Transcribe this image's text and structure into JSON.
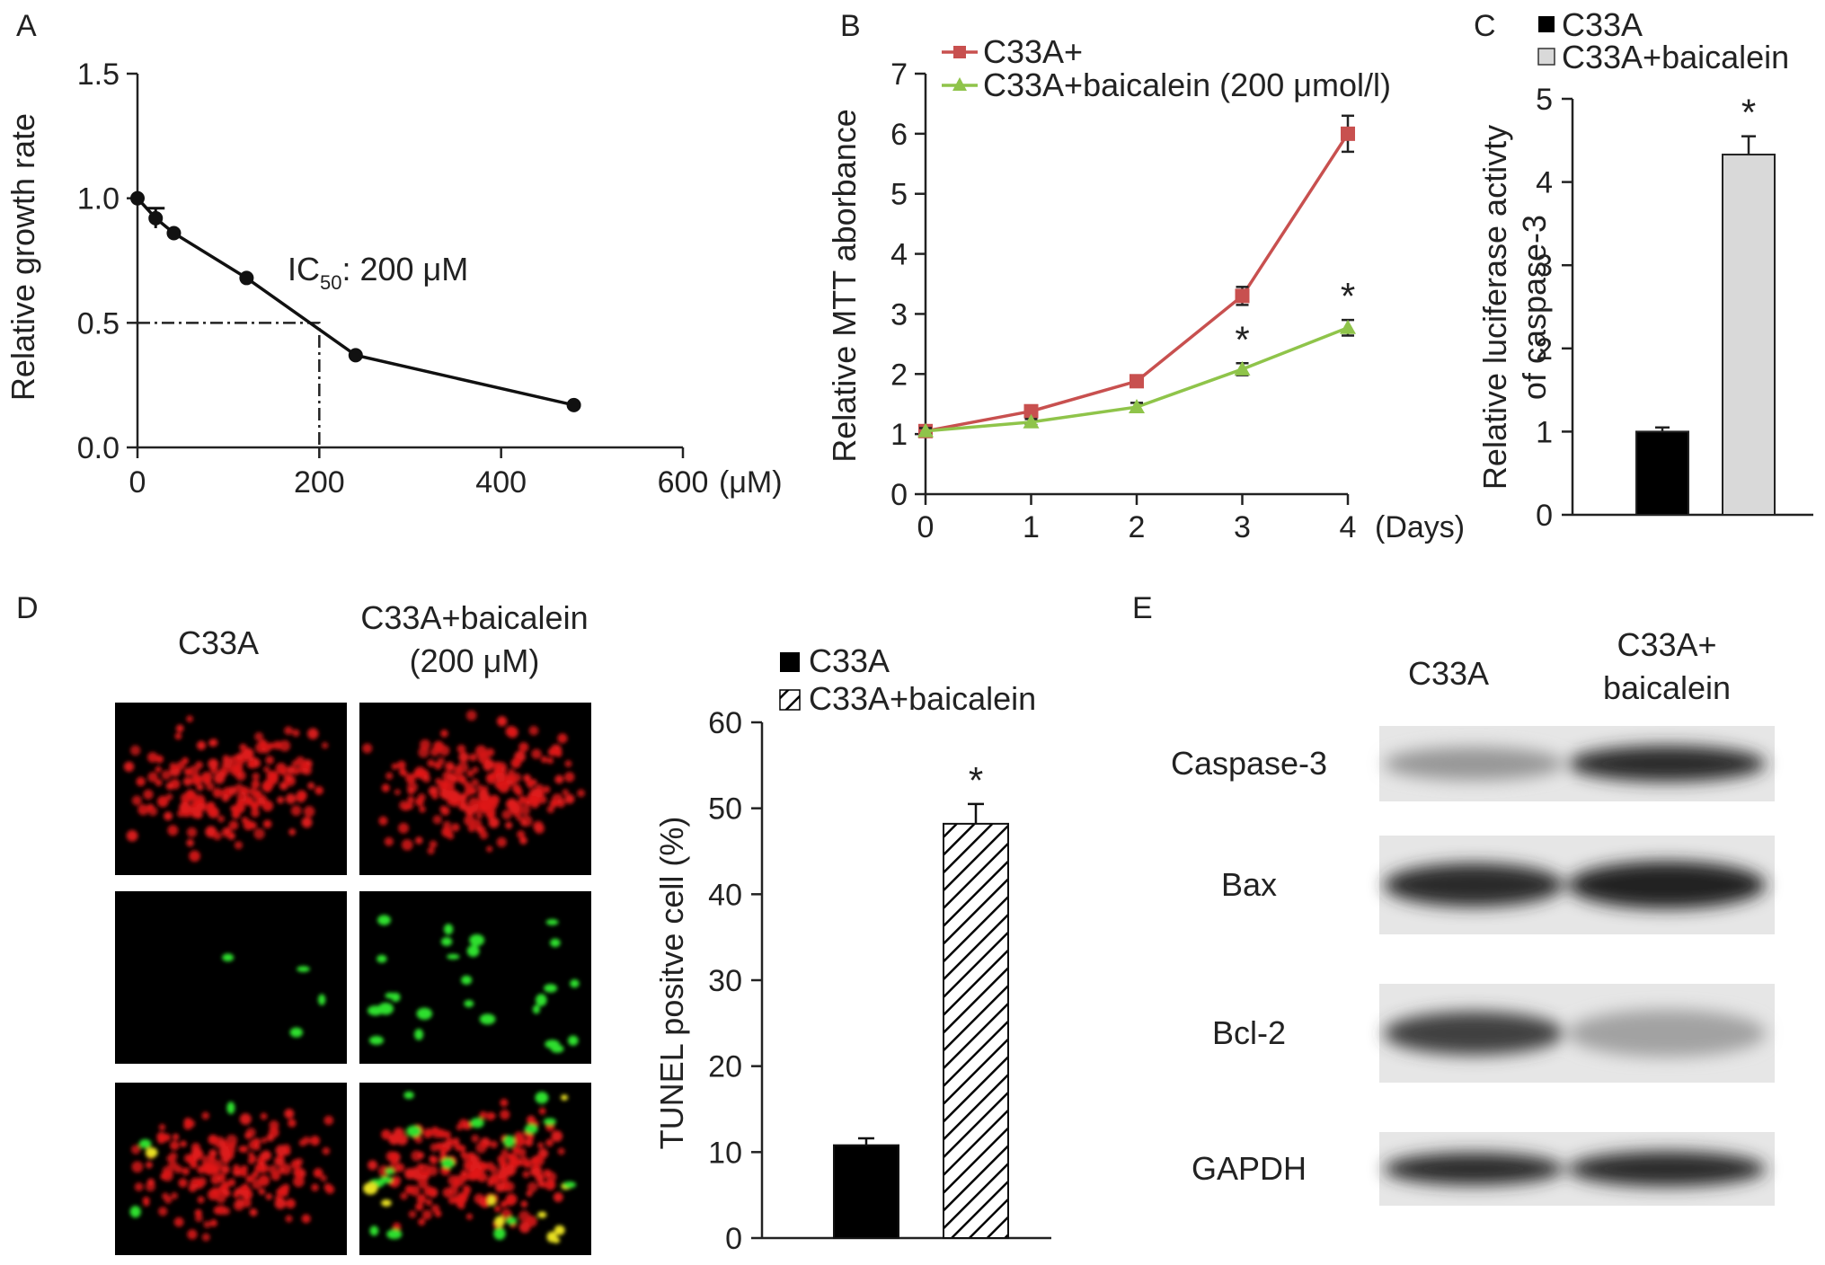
{
  "panels": {
    "A": "A",
    "B": "B",
    "C": "C",
    "D": "D",
    "E": "E"
  },
  "colors": {
    "red_series": "#c8504f",
    "green_series": "#8fc44a",
    "black_bar": "#000000",
    "gray_bar": "#d9d9d9",
    "red_stain": "#e01a1a",
    "green_stain": "#2ee02e",
    "yellow_stain": "#e8e020"
  },
  "chart_data": [
    {
      "id": "A",
      "type": "line",
      "x": [
        0,
        20,
        40,
        120,
        240,
        480
      ],
      "y": [
        1.0,
        0.92,
        0.86,
        0.68,
        0.37,
        0.17
      ],
      "error": [
        0,
        0.04,
        0,
        0,
        0,
        0
      ],
      "xlabel": "(μM)",
      "ylabel": "Relative growth rate",
      "xlim": [
        0,
        600
      ],
      "ylim": [
        0,
        1.5
      ],
      "xticks": [
        "0",
        "200",
        "400",
        "600"
      ],
      "yticks": [
        "0.0",
        "0.5",
        "1.0",
        "1.5"
      ],
      "annotation": {
        "text_main": "IC",
        "text_sub": "50",
        "text_rest": ": 200 μM",
        "x": 200,
        "y": 0.5
      }
    },
    {
      "id": "B",
      "type": "line",
      "x": [
        0,
        1,
        2,
        3,
        4
      ],
      "xlabel": "(Days)",
      "ylabel": "Relative MTT aborbance",
      "xlim": [
        0,
        4
      ],
      "ylim": [
        0,
        7
      ],
      "xticks": [
        "0",
        "1",
        "2",
        "3",
        "4"
      ],
      "yticks": [
        "0",
        "1",
        "2",
        "3",
        "4",
        "5",
        "6",
        "7"
      ],
      "legend": "top-left",
      "series": [
        {
          "name": "C33A+",
          "values": [
            1.05,
            1.38,
            1.88,
            3.3,
            6.0
          ],
          "error": [
            0.05,
            0.06,
            0.07,
            0.15,
            0.3
          ]
        },
        {
          "name": "C33A+baicalein (200 μmol/l)",
          "values": [
            1.05,
            1.2,
            1.45,
            2.08,
            2.77
          ],
          "error": [
            0.05,
            0.05,
            0.07,
            0.1,
            0.13
          ]
        }
      ],
      "significance": [
        {
          "x": 3,
          "label": "*"
        },
        {
          "x": 4,
          "label": "*"
        }
      ]
    },
    {
      "id": "C",
      "type": "bar",
      "categories": [
        "C33A",
        "C33A+baicalein"
      ],
      "values": [
        1.0,
        4.33
      ],
      "error": [
        0.05,
        0.22
      ],
      "ylabel_line1": "Relative luciferase activty",
      "ylabel_line2": "of caspase-3",
      "ylim": [
        0,
        5
      ],
      "yticks": [
        "0",
        "1",
        "2",
        "3",
        "4",
        "5"
      ],
      "legend": "top",
      "significance": [
        {
          "index": 1,
          "label": "*"
        }
      ]
    },
    {
      "id": "D",
      "type": "bar",
      "categories": [
        "C33A",
        "C33A+baicalein"
      ],
      "values": [
        10.8,
        48.2
      ],
      "error": [
        0.8,
        2.3
      ],
      "ylabel": "TUNEL positve cell (%)",
      "ylim": [
        0,
        60
      ],
      "yticks": [
        "0",
        "10",
        "20",
        "30",
        "40",
        "50",
        "60"
      ],
      "legend": "top",
      "significance": [
        {
          "index": 1,
          "label": "*"
        }
      ]
    }
  ],
  "microscopy": {
    "col1_label": "C33A",
    "col2_label_line1": "C33A+baicalein",
    "col2_label_line2": "(200 μM)"
  },
  "blot": {
    "col1_label": "C33A",
    "col2_label_line1": "C33A+",
    "col2_label_line2": "baicalein",
    "rows": [
      {
        "label": "Caspase-3",
        "left_intensity": 0.35,
        "right_intensity": 0.85
      },
      {
        "label": "Bax",
        "left_intensity": 0.85,
        "right_intensity": 0.9
      },
      {
        "label": "Bcl-2",
        "left_intensity": 0.75,
        "right_intensity": 0.3
      },
      {
        "label": "GAPDH",
        "left_intensity": 0.85,
        "right_intensity": 0.85
      }
    ]
  }
}
